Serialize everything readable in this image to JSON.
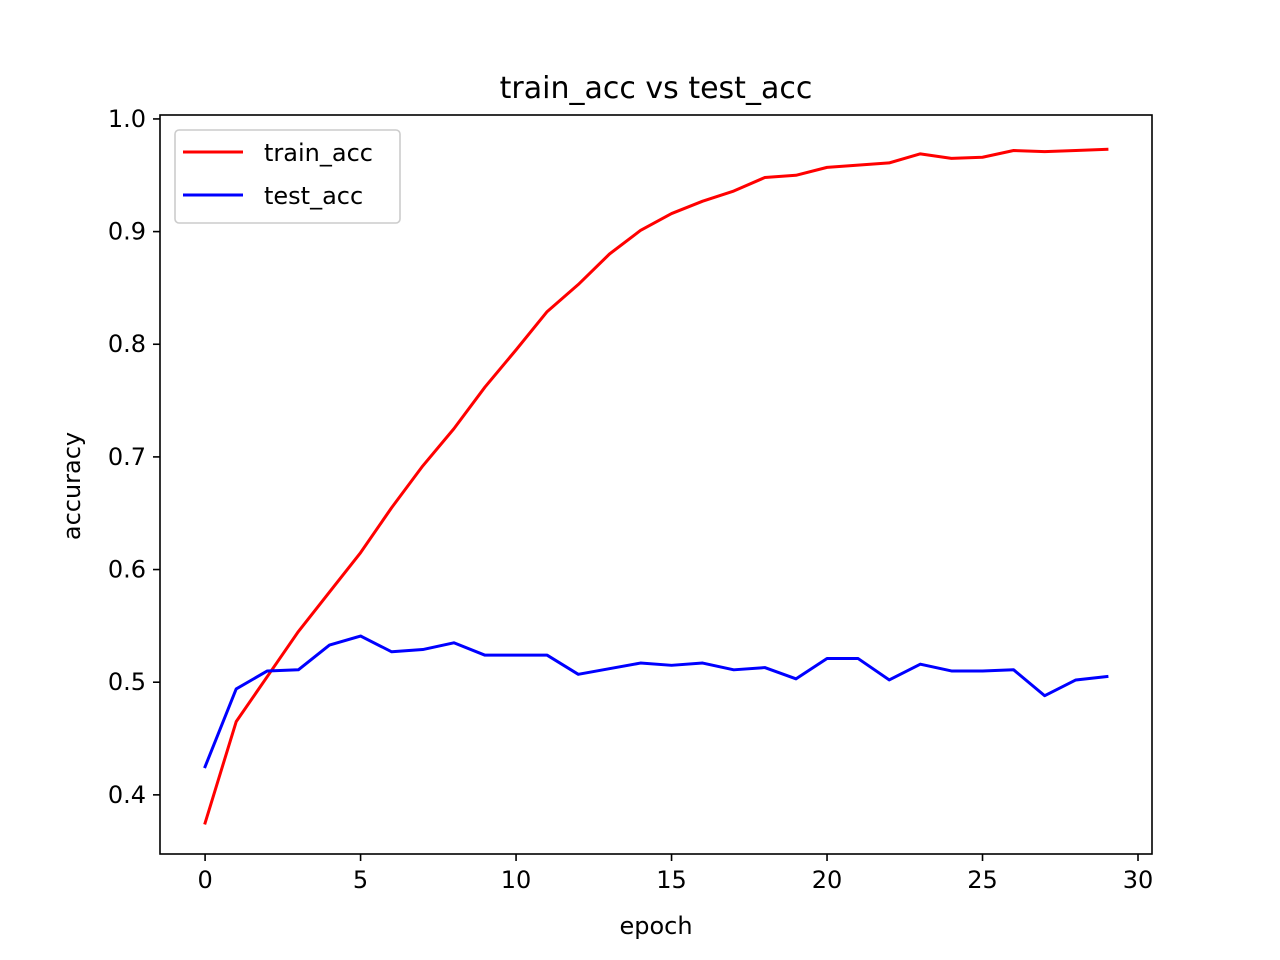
{
  "chart_data": {
    "type": "line",
    "title": "train_acc vs test_acc",
    "xlabel": "epoch",
    "ylabel": "accuracy",
    "xlim": [
      -1.45,
      30.45
    ],
    "ylim": [
      0.3475,
      1.0035
    ],
    "xticks": [
      0,
      5,
      10,
      15,
      20,
      25,
      30
    ],
    "yticks": [
      0.4,
      0.5,
      0.6,
      0.7,
      0.8,
      0.9,
      1.0
    ],
    "xtick_labels": [
      "0",
      "5",
      "10",
      "15",
      "20",
      "25",
      "30"
    ],
    "ytick_labels": [
      "0.4",
      "0.5",
      "0.6",
      "0.7",
      "0.8",
      "0.9",
      "1.0"
    ],
    "grid": false,
    "legend_position": "top-left",
    "x": [
      0,
      1,
      2,
      3,
      4,
      5,
      6,
      7,
      8,
      9,
      10,
      11,
      12,
      13,
      14,
      15,
      16,
      17,
      18,
      19,
      20,
      21,
      22,
      23,
      24,
      25,
      26,
      27,
      28,
      29
    ],
    "series": [
      {
        "name": "train_acc",
        "color": "#ff0000",
        "values": [
          0.375,
          0.465,
          0.505,
          0.545,
          0.58,
          0.615,
          0.655,
          0.692,
          0.725,
          0.762,
          0.795,
          0.829,
          0.853,
          0.88,
          0.901,
          0.916,
          0.927,
          0.936,
          0.948,
          0.95,
          0.957,
          0.959,
          0.961,
          0.969,
          0.965,
          0.966,
          0.972,
          0.971,
          0.972,
          0.973
        ]
      },
      {
        "name": "test_acc",
        "color": "#0000ff",
        "values": [
          0.425,
          0.494,
          0.51,
          0.511,
          0.533,
          0.541,
          0.527,
          0.529,
          0.535,
          0.524,
          0.524,
          0.524,
          0.507,
          0.512,
          0.517,
          0.515,
          0.517,
          0.511,
          0.513,
          0.503,
          0.521,
          0.521,
          0.502,
          0.516,
          0.51,
          0.51,
          0.511,
          0.488,
          0.502,
          0.505
        ]
      }
    ]
  }
}
